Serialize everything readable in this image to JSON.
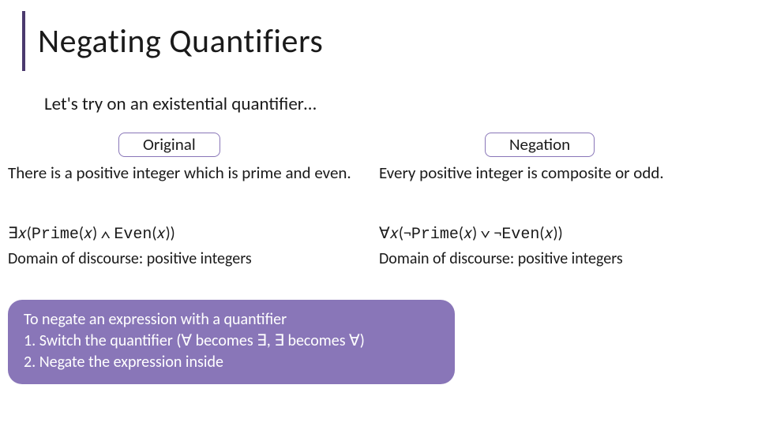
{
  "title": "Negating Quantifiers",
  "intro": "Let's try on an existential quantifier…",
  "labels": {
    "original": "Original",
    "negation": "Negation"
  },
  "statements": {
    "original": "There is a positive integer which is prime and even.",
    "negation": "Every positive integer is composite or odd."
  },
  "expressions": {
    "original": {
      "formula_prefix": "∃𝑥(",
      "p1": "Prime",
      "arg1": "(𝑥) ∧ ",
      "p2": "Even",
      "arg2": "(𝑥))",
      "domain": "Domain of discourse: positive integers"
    },
    "negation": {
      "formula_prefix": "∀𝑥(¬",
      "p1": "Prime",
      "arg1": "(𝑥) ∨ ¬",
      "p2": "Even",
      "arg2": "(𝑥))",
      "domain": "Domain of discourse: positive integers"
    }
  },
  "tip": {
    "line1": "To negate an expression with a quantifier",
    "line2": "1. Switch the quantifier (∀ becomes ∃, ∃ becomes ∀)",
    "line3": "2. Negate the expression inside"
  },
  "colors": {
    "accent": "#4b3a6e",
    "box_border": "#8976b8",
    "tip_bg": "#8976b8",
    "tip_text": "#ffffff",
    "text": "#1a1a1a",
    "background": "#ffffff"
  },
  "typography": {
    "title_fontsize": 42,
    "body_fontsize": 21,
    "expr_fontsize": 20,
    "tip_fontsize": 20
  }
}
